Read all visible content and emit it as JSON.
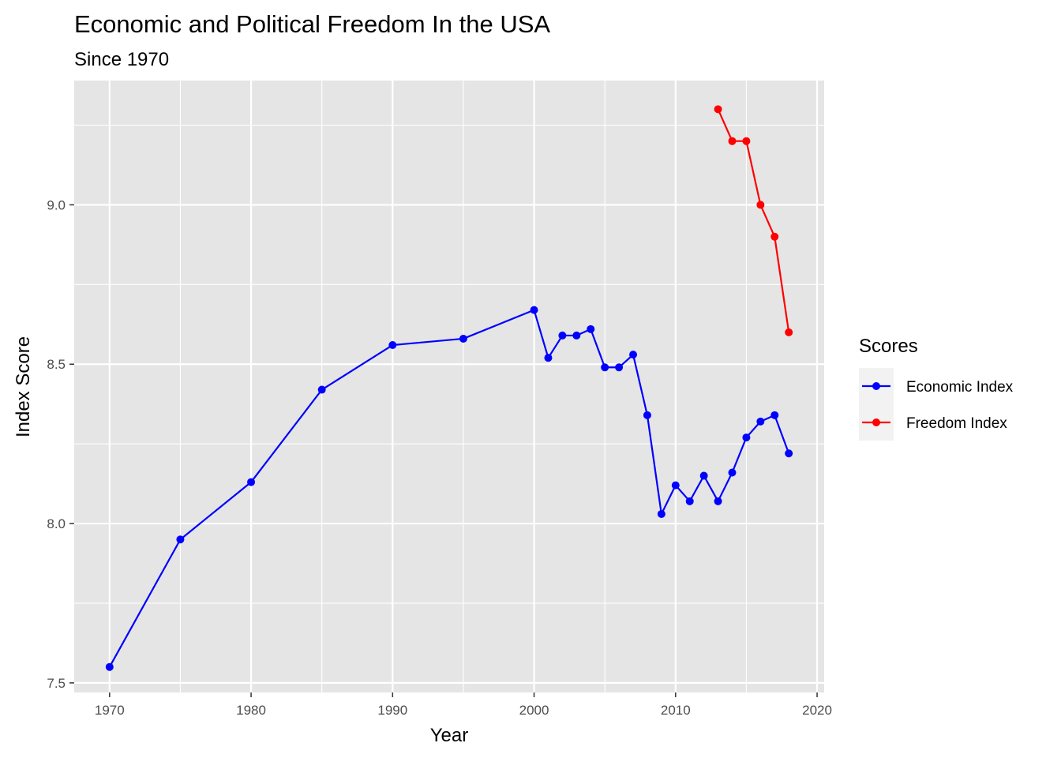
{
  "chart_data": {
    "type": "line",
    "title": "Economic and Political Freedom In the USA",
    "subtitle": "Since 1970",
    "xlabel": "Year",
    "ylabel": "Index Score",
    "xlim": [
      1967.5,
      2020.5
    ],
    "ylim": [
      7.47,
      9.39
    ],
    "x_ticks": [
      1970,
      1980,
      1990,
      2000,
      2010,
      2020
    ],
    "y_ticks": [
      7.5,
      8.0,
      8.5,
      9.0
    ],
    "y_tick_labels": [
      "7.5",
      "8.0",
      "8.5",
      "9.0"
    ],
    "x_minor_ticks": [
      1975,
      1985,
      1995,
      2005,
      2015
    ],
    "y_minor_ticks": [
      7.75,
      8.25,
      8.75,
      9.25
    ],
    "grid": true,
    "legend": {
      "title": "Scores",
      "position": "right"
    },
    "colors": {
      "panel_background": "#e5e5e5",
      "grid": "#ffffff",
      "legend_key_background": "#f2f2f2"
    },
    "series": [
      {
        "name": "Economic Index",
        "color": "#0000ff",
        "x": [
          1970,
          1975,
          1980,
          1985,
          1990,
          1995,
          2000,
          2001,
          2002,
          2003,
          2004,
          2005,
          2006,
          2007,
          2008,
          2009,
          2010,
          2011,
          2012,
          2013,
          2014,
          2015,
          2016,
          2017,
          2018
        ],
        "y": [
          7.55,
          7.95,
          8.13,
          8.42,
          8.56,
          8.58,
          8.67,
          8.52,
          8.59,
          8.59,
          8.61,
          8.49,
          8.49,
          8.53,
          8.34,
          8.03,
          8.12,
          8.07,
          8.15,
          8.07,
          8.16,
          8.27,
          8.32,
          8.34,
          8.22
        ]
      },
      {
        "name": "Freedom Index",
        "color": "#ff0000",
        "x": [
          2013,
          2014,
          2015,
          2016,
          2017,
          2018
        ],
        "y": [
          9.3,
          9.2,
          9.2,
          9.0,
          8.9,
          8.6
        ]
      }
    ]
  }
}
